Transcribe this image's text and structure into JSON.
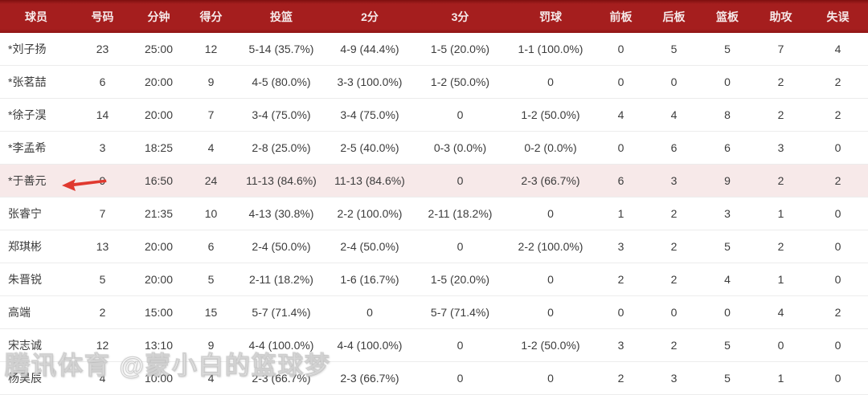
{
  "colors": {
    "header_bg": "#a51e1e",
    "header_bg_dark": "#7e1010",
    "header_text": "#f6eaea",
    "row_bg": "#ffffff",
    "row_border": "#ececec",
    "highlight_bg": "#f7e9e9",
    "body_text": "#3c3c3c",
    "arrow": "#e0392f"
  },
  "table": {
    "columns": [
      {
        "key": "player",
        "label": "球员"
      },
      {
        "key": "number",
        "label": "号码"
      },
      {
        "key": "minutes",
        "label": "分钟"
      },
      {
        "key": "points",
        "label": "得分"
      },
      {
        "key": "fg",
        "label": "投篮"
      },
      {
        "key": "two_pt",
        "label": "2分"
      },
      {
        "key": "three_pt",
        "label": "3分"
      },
      {
        "key": "ft",
        "label": "罚球"
      },
      {
        "key": "off_reb",
        "label": "前板"
      },
      {
        "key": "def_reb",
        "label": "后板"
      },
      {
        "key": "reb",
        "label": "篮板"
      },
      {
        "key": "ast",
        "label": "助攻"
      },
      {
        "key": "tov",
        "label": "失误"
      }
    ],
    "rows": [
      {
        "highlighted": false,
        "cells": [
          "*刘子扬",
          "23",
          "25:00",
          "12",
          "5-14 (35.7%)",
          "4-9 (44.4%)",
          "1-5 (20.0%)",
          "1-1 (100.0%)",
          "0",
          "5",
          "5",
          "7",
          "4"
        ]
      },
      {
        "highlighted": false,
        "cells": [
          "*张茗喆",
          "6",
          "20:00",
          "9",
          "4-5 (80.0%)",
          "3-3 (100.0%)",
          "1-2 (50.0%)",
          "0",
          "0",
          "0",
          "0",
          "2",
          "2"
        ]
      },
      {
        "highlighted": false,
        "cells": [
          "*徐子淏",
          "14",
          "20:00",
          "7",
          "3-4 (75.0%)",
          "3-4 (75.0%)",
          "0",
          "1-2 (50.0%)",
          "4",
          "4",
          "8",
          "2",
          "2"
        ]
      },
      {
        "highlighted": false,
        "cells": [
          "*李孟希",
          "3",
          "18:25",
          "4",
          "2-8 (25.0%)",
          "2-5 (40.0%)",
          "0-3 (0.0%)",
          "0-2 (0.0%)",
          "0",
          "6",
          "6",
          "3",
          "0"
        ]
      },
      {
        "highlighted": true,
        "cells": [
          "*于善元",
          "9",
          "16:50",
          "24",
          "11-13 (84.6%)",
          "11-13 (84.6%)",
          "0",
          "2-3 (66.7%)",
          "6",
          "3",
          "9",
          "2",
          "2"
        ]
      },
      {
        "highlighted": false,
        "cells": [
          "张睿宁",
          "7",
          "21:35",
          "10",
          "4-13 (30.8%)",
          "2-2 (100.0%)",
          "2-11 (18.2%)",
          "0",
          "1",
          "2",
          "3",
          "1",
          "0"
        ]
      },
      {
        "highlighted": false,
        "cells": [
          "郑琪彬",
          "13",
          "20:00",
          "6",
          "2-4 (50.0%)",
          "2-4 (50.0%)",
          "0",
          "2-2 (100.0%)",
          "3",
          "2",
          "5",
          "2",
          "0"
        ]
      },
      {
        "highlighted": false,
        "cells": [
          "朱晋锐",
          "5",
          "20:00",
          "5",
          "2-11 (18.2%)",
          "1-6 (16.7%)",
          "1-5 (20.0%)",
          "0",
          "2",
          "2",
          "4",
          "1",
          "0"
        ]
      },
      {
        "highlighted": false,
        "cells": [
          "高端",
          "2",
          "15:00",
          "15",
          "5-7 (71.4%)",
          "0",
          "5-7 (71.4%)",
          "0",
          "0",
          "0",
          "0",
          "4",
          "2"
        ]
      },
      {
        "highlighted": false,
        "cells": [
          "宋志诚",
          "12",
          "13:10",
          "9",
          "4-4 (100.0%)",
          "4-4 (100.0%)",
          "0",
          "1-2 (50.0%)",
          "3",
          "2",
          "5",
          "0",
          "0"
        ]
      },
      {
        "highlighted": false,
        "cells": [
          "杨昊辰",
          "4",
          "10:00",
          "4",
          "2-3 (66.7%)",
          "2-3 (66.7%)",
          "0",
          "0",
          "2",
          "3",
          "5",
          "1",
          "0"
        ]
      }
    ]
  },
  "annotations": {
    "arrow_color": "#e0392f",
    "arrow_target_player": "*于善元",
    "watermark_text": "腾讯体育 @蒙小白的篮球梦"
  }
}
